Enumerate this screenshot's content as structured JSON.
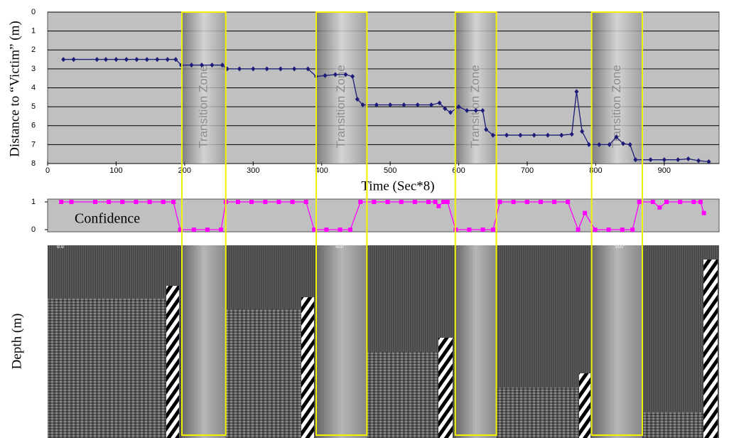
{
  "chart_data": [
    {
      "type": "line",
      "x_label": "Time (Sec*8)",
      "y_label": "Distance to “Victim” (m)",
      "xlim": [
        0,
        980
      ],
      "xticks": [
        0,
        100,
        200,
        300,
        400,
        500,
        600,
        700,
        800,
        900
      ],
      "ylim": [
        0,
        8
      ],
      "y_inverted": true,
      "yticks": [
        0,
        1,
        2,
        3,
        4,
        5,
        6,
        7,
        8
      ],
      "grid": true,
      "background": "#c0c0c0",
      "marker": "diamond",
      "zones": [
        {
          "label": "Transition Zone",
          "start": 196,
          "end": 260
        },
        {
          "label": "Transition Zone",
          "start": 392,
          "end": 466
        },
        {
          "label": "Transition Zone",
          "start": 595,
          "end": 655
        },
        {
          "label": "Transition Zone",
          "start": 794,
          "end": 868
        }
      ],
      "zone_color": "#f2f200",
      "series": [
        {
          "color": "#1c1c78",
          "x": [
            23,
            38,
            72,
            85,
            100,
            115,
            130,
            145,
            160,
            175,
            187,
            195,
            210,
            225,
            240,
            255,
            262,
            280,
            300,
            320,
            340,
            360,
            380,
            392,
            405,
            420,
            435,
            445,
            452,
            460,
            480,
            500,
            520,
            540,
            560,
            572,
            580,
            588,
            600,
            612,
            625,
            635,
            640,
            650,
            670,
            690,
            710,
            730,
            750,
            765,
            772,
            780,
            790,
            805,
            820,
            830,
            840,
            850,
            858,
            880,
            900,
            920,
            935,
            950,
            965
          ],
          "values": [
            2.5,
            2.5,
            2.5,
            2.5,
            2.5,
            2.5,
            2.5,
            2.5,
            2.5,
            2.5,
            2.5,
            2.8,
            2.8,
            2.8,
            2.8,
            2.8,
            3.0,
            3.0,
            3.0,
            3.0,
            3.0,
            3.0,
            3.0,
            3.4,
            3.35,
            3.3,
            3.3,
            3.4,
            4.6,
            4.9,
            4.9,
            4.9,
            4.9,
            4.9,
            4.9,
            4.8,
            5.1,
            5.3,
            5.0,
            5.2,
            5.2,
            5.2,
            6.2,
            6.5,
            6.5,
            6.5,
            6.5,
            6.5,
            6.5,
            6.45,
            4.2,
            6.3,
            7.0,
            7.0,
            7.0,
            6.6,
            6.95,
            7.0,
            7.8,
            7.8,
            7.8,
            7.8,
            7.75,
            7.85,
            7.9
          ]
        }
      ]
    },
    {
      "type": "line",
      "label": "Confidence",
      "xlim": [
        0,
        980
      ],
      "ylim": [
        0,
        1
      ],
      "yticks": [
        0,
        1
      ],
      "background": "#c0c0c0",
      "marker": "square",
      "series": [
        {
          "color": "#ff00ff",
          "x": [
            20,
            35,
            70,
            90,
            110,
            130,
            150,
            170,
            185,
            195,
            215,
            235,
            255,
            262,
            280,
            300,
            320,
            340,
            360,
            380,
            392,
            410,
            430,
            445,
            460,
            480,
            500,
            520,
            540,
            560,
            570,
            575,
            582,
            588,
            600,
            620,
            640,
            655,
            665,
            685,
            705,
            725,
            745,
            765,
            780,
            790,
            805,
            825,
            845,
            860,
            870,
            890,
            900,
            910,
            930,
            950,
            960,
            965
          ],
          "values": [
            1,
            1,
            1,
            1,
            1,
            1,
            1,
            1,
            1,
            0,
            0,
            0,
            0,
            1,
            1,
            1,
            1,
            1,
            1,
            1,
            0,
            0,
            0,
            0,
            1,
            1,
            1,
            1,
            1,
            1,
            1,
            0.85,
            1,
            1,
            0,
            0,
            0,
            0,
            1,
            1,
            1,
            1,
            1,
            1,
            0,
            0.6,
            0,
            0,
            0,
            0,
            1,
            1,
            0.8,
            1,
            1,
            1,
            1,
            0.6
          ]
        }
      ]
    }
  ],
  "radar": {
    "y_label": "Depth (m)",
    "top_labels": [
      "0.0",
      "400",
      "800"
    ]
  }
}
